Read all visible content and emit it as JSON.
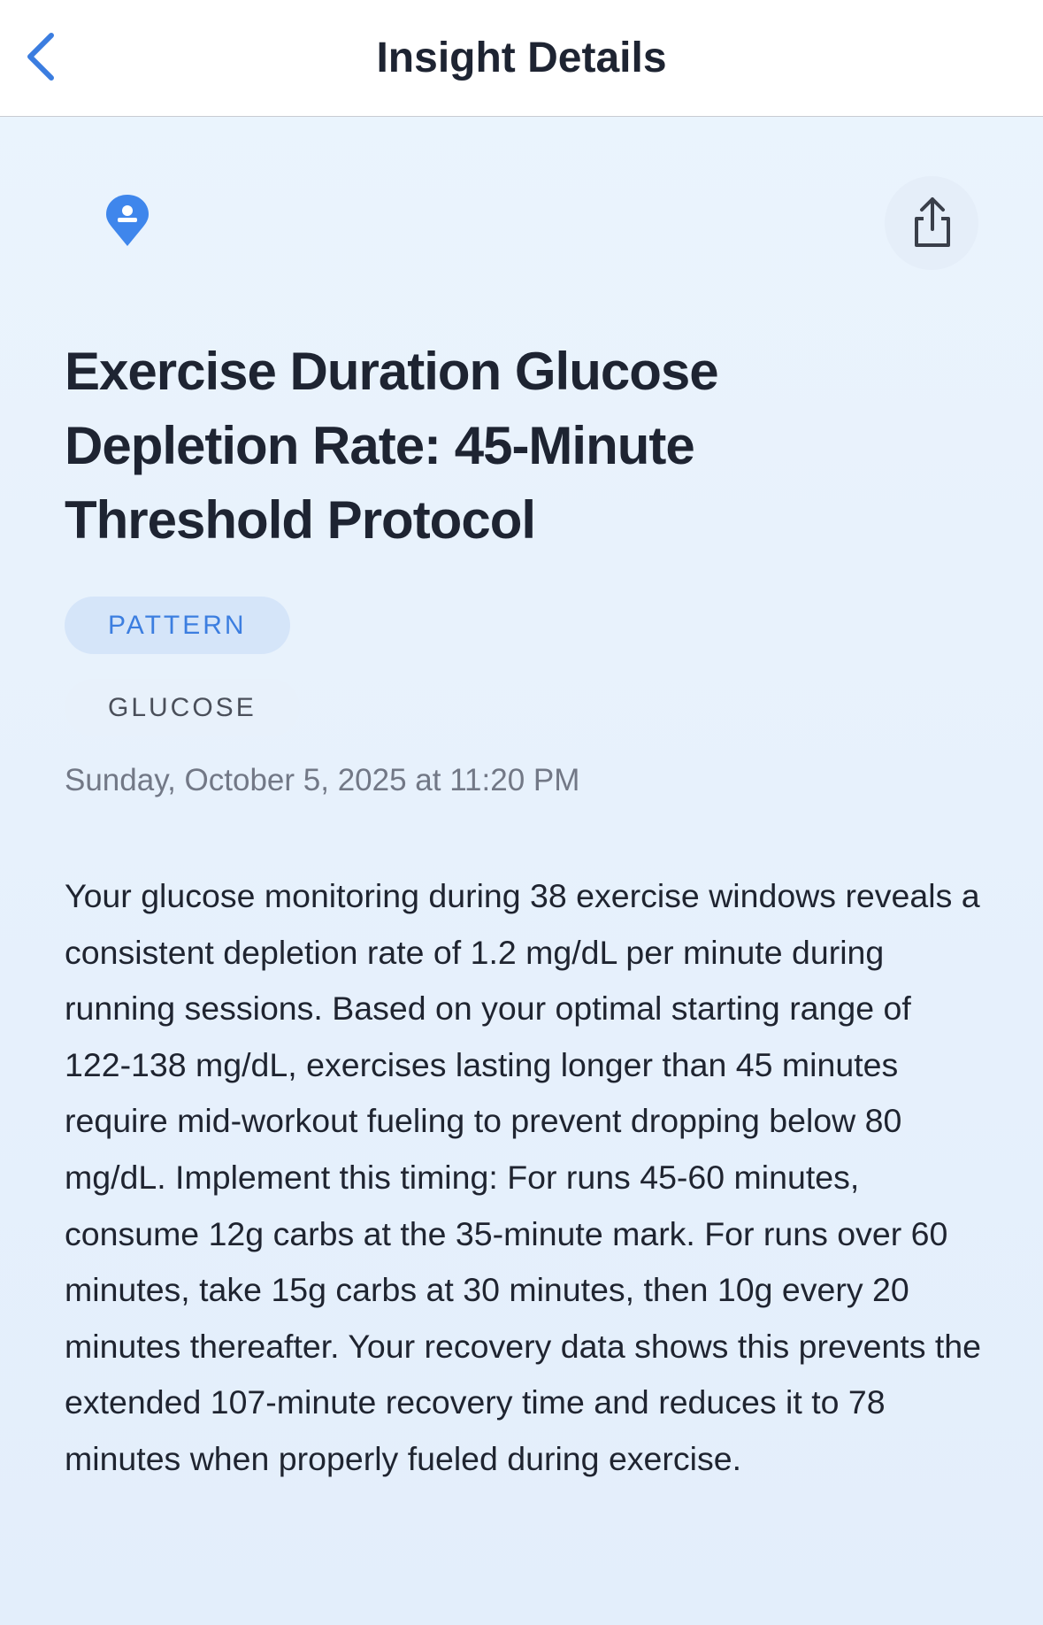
{
  "header": {
    "title": "Insight Details"
  },
  "insight": {
    "title": "Exercise Duration Glucose Depletion Rate: 45-Minute Threshold Protocol",
    "tags": [
      "PATTERN",
      "GLUCOSE"
    ],
    "timestamp": "Sunday, October 5, 2025 at 11:20 PM",
    "body": "Your glucose monitoring during 38 exercise windows reveals a consistent depletion rate of 1.2 mg/dL per minute during running sessions. Based on your optimal starting range of 122-138 mg/dL, exercises lasting longer than 45 minutes require mid-workout fueling to prevent dropping below 80 mg/dL. Implement this timing: For runs 45-60 minutes, consume 12g carbs at the 35-minute mark. For runs over 60 minutes, take 15g carbs at 30 minutes, then 10g every 20 minutes thereafter. Your recovery data shows this prevents the extended 107-minute recovery time and reduces it to 78 minutes when properly fueled during exercise."
  }
}
